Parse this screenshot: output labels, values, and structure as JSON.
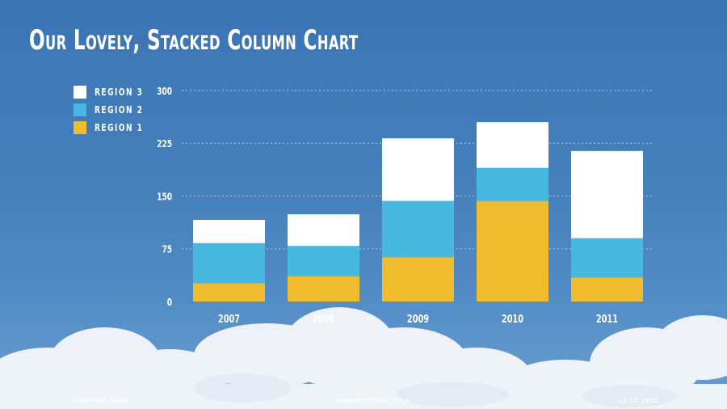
{
  "slide": {
    "title": "Our Lovely, Stacked Column Chart",
    "footer": {
      "company": "COMPANY NAME",
      "presentation": "PRESENTATION TITLE",
      "date": "12  12  2012"
    }
  },
  "legend": {
    "items": [
      {
        "label": "REGION 3",
        "color": "#ffffff"
      },
      {
        "label": "REGION 2",
        "color": "#47b9e0"
      },
      {
        "label": "REGION 1",
        "color": "#f0bb2e"
      }
    ]
  },
  "colors": {
    "background": "#4580bd",
    "region1": "#f0bb2e",
    "region2": "#47b9e0",
    "region3": "#ffffff",
    "gridline": "#c9daf0",
    "cloud": "#f2f5f9"
  },
  "chart_data": {
    "type": "bar",
    "stacked": true,
    "title": "Our Lovely, Stacked Column Chart",
    "categories": [
      "2007",
      "2008",
      "2009",
      "2010",
      "2011"
    ],
    "series": [
      {
        "name": "REGION 1",
        "values": [
          26,
          36,
          63,
          143,
          34
        ]
      },
      {
        "name": "REGION 2",
        "values": [
          57,
          43,
          80,
          47,
          56
        ]
      },
      {
        "name": "REGION 3",
        "values": [
          33,
          45,
          89,
          65,
          124
        ]
      }
    ],
    "ylim": [
      0,
      300
    ],
    "yticks": [
      "0",
      "75",
      "150",
      "225",
      "300"
    ],
    "xlabel": "",
    "ylabel": "",
    "grid": true,
    "legend_position": "top-left"
  }
}
